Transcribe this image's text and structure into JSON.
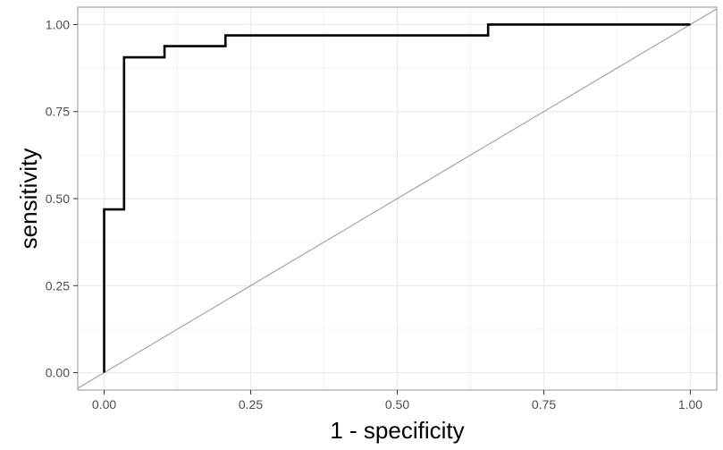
{
  "chart_data": {
    "type": "line",
    "title": "",
    "xlabel": "1 - specificity",
    "ylabel": "sensitivity",
    "xlim": [
      -0.045,
      1.045
    ],
    "ylim": [
      -0.05,
      1.05
    ],
    "x_ticks": [
      0,
      0.25,
      0.5,
      0.75,
      1
    ],
    "x_tick_labels": [
      "0.00",
      "0.25",
      "0.50",
      "0.75",
      "1.00"
    ],
    "y_ticks": [
      0,
      0.25,
      0.5,
      0.75,
      1
    ],
    "y_tick_labels": [
      "0.00",
      "0.25",
      "0.50",
      "0.75",
      "1.00"
    ],
    "grid": true,
    "series": [
      {
        "x": [
          0,
          0,
          0.034,
          0.034,
          0.103,
          0.103,
          0.207,
          0.207,
          0.655,
          0.655,
          1.0
        ],
        "y": [
          0,
          0.469,
          0.469,
          0.906,
          0.906,
          0.938,
          0.938,
          0.969,
          0.969,
          1.0,
          1.0
        ],
        "color": "#000000",
        "step": true
      }
    ],
    "reference_line": {
      "x": [
        -0.045,
        1.045
      ],
      "y": [
        -0.045,
        1.045
      ],
      "color": "#a6a6a6"
    },
    "colors": {
      "grid": "#ebebeb",
      "panel_border": "#a6a6a6",
      "tick_text": "#4d4d4d"
    }
  }
}
